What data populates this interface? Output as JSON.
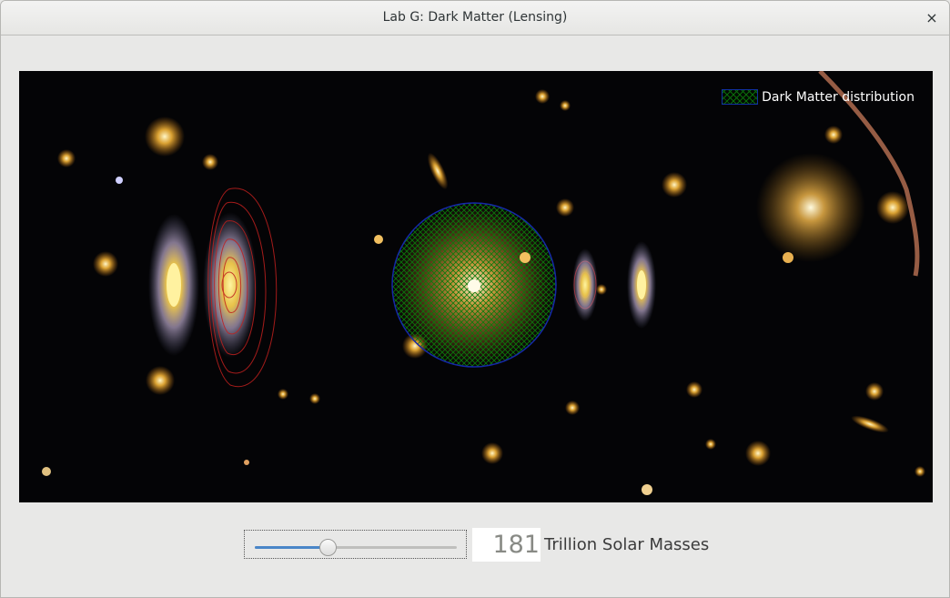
{
  "window": {
    "title": "Lab G: Dark Matter (Lensing)",
    "close_glyph": "×"
  },
  "viewport": {
    "legend_label": "Dark Matter distribution",
    "legend_swatch": "green crosshatch",
    "dark_matter_color": "#0b7a0b",
    "halo_outline_color": "#1528a8",
    "contour_color": "#c0201e"
  },
  "controls": {
    "mass_value": "181",
    "mass_unit": "Trillion Solar Masses",
    "slider_fraction": 0.36,
    "slider_accent": "#4a86c8"
  }
}
